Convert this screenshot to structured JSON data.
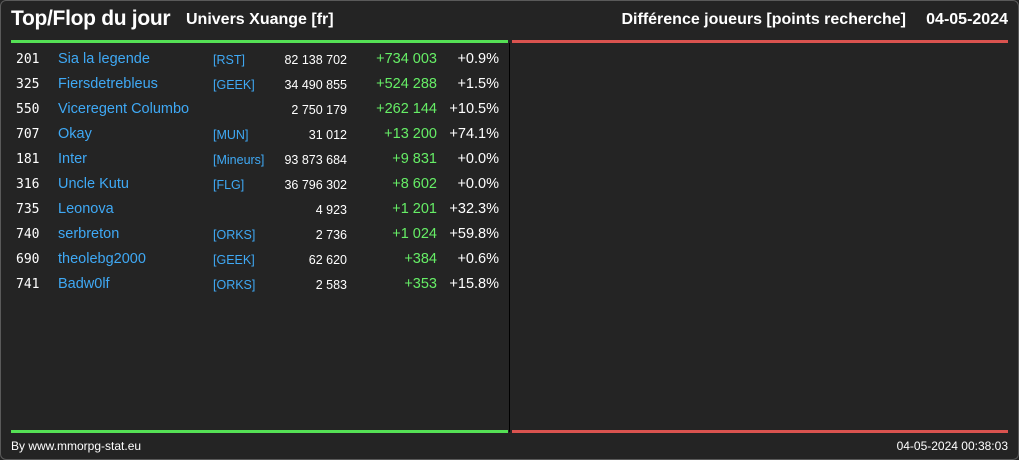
{
  "header": {
    "title": "Top/Flop du jour",
    "subtitle": "Univers Xuange [fr]",
    "metric": "Différence joueurs [points recherche]",
    "date": "04-05-2024"
  },
  "colors": {
    "top": "#55e055",
    "flop": "#d9534f",
    "link": "#3fa9f5",
    "positive": "#66ee66"
  },
  "top_players": [
    {
      "rank": "201",
      "name": "Sia la legende",
      "alliance": "[RST]",
      "points": "82 138 702",
      "diff": "+734 003",
      "pct": "+0.9%"
    },
    {
      "rank": "325",
      "name": "Fiersdetrebleus",
      "alliance": "[GEEK]",
      "points": "34 490 855",
      "diff": "+524 288",
      "pct": "+1.5%"
    },
    {
      "rank": "550",
      "name": "Viceregent Columbo",
      "alliance": "",
      "points": "2 750 179",
      "diff": "+262 144",
      "pct": "+10.5%"
    },
    {
      "rank": "707",
      "name": "Okay",
      "alliance": "[MUN]",
      "points": "31 012",
      "diff": "+13 200",
      "pct": "+74.1%"
    },
    {
      "rank": "181",
      "name": "Inter",
      "alliance": "[Mineurs]",
      "points": "93 873 684",
      "diff": "+9 831",
      "pct": "+0.0%"
    },
    {
      "rank": "316",
      "name": "Uncle Kutu",
      "alliance": "[FLG]",
      "points": "36 796 302",
      "diff": "+8 602",
      "pct": "+0.0%"
    },
    {
      "rank": "735",
      "name": "Leonova",
      "alliance": "",
      "points": "4 923",
      "diff": "+1 201",
      "pct": "+32.3%"
    },
    {
      "rank": "740",
      "name": "serbreton",
      "alliance": "[ORKS]",
      "points": "2 736",
      "diff": "+1 024",
      "pct": "+59.8%"
    },
    {
      "rank": "690",
      "name": "theolebg2000",
      "alliance": "[GEEK]",
      "points": "62 620",
      "diff": "+384",
      "pct": "+0.6%"
    },
    {
      "rank": "741",
      "name": "Badw0lf",
      "alliance": "[ORKS]",
      "points": "2 583",
      "diff": "+353",
      "pct": "+15.8%"
    }
  ],
  "footer": {
    "credit": "By www.mmorpg-stat.eu",
    "timestamp": "04-05-2024 00:38:03"
  }
}
